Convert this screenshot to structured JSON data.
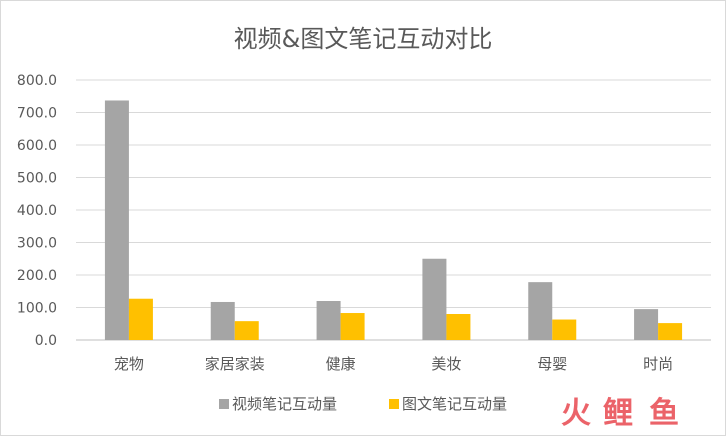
{
  "chart_data": {
    "type": "bar",
    "title": "视频&图文笔记互动对比",
    "categories": [
      "宠物",
      "家居家装",
      "健康",
      "美妆",
      "母婴",
      "时尚"
    ],
    "series": [
      {
        "name": "视频笔记互动量",
        "color": "#a5a5a5",
        "values": [
          737,
          117,
          120,
          250,
          178,
          95
        ]
      },
      {
        "name": "图文笔记互动量",
        "color": "#ffc000",
        "values": [
          127,
          58,
          83,
          80,
          63,
          52
        ]
      }
    ],
    "ylim": [
      0,
      800
    ],
    "yticks": [
      "0.0",
      "100.0",
      "200.0",
      "300.0",
      "400.0",
      "500.0",
      "600.0",
      "700.0",
      "800.0"
    ],
    "grid": true,
    "legend": "bottom"
  },
  "watermark": {
    "chars": [
      "火",
      "鲤",
      "鱼"
    ],
    "colors": [
      "#e8484f",
      "#e8484f",
      "#e8484f"
    ]
  }
}
